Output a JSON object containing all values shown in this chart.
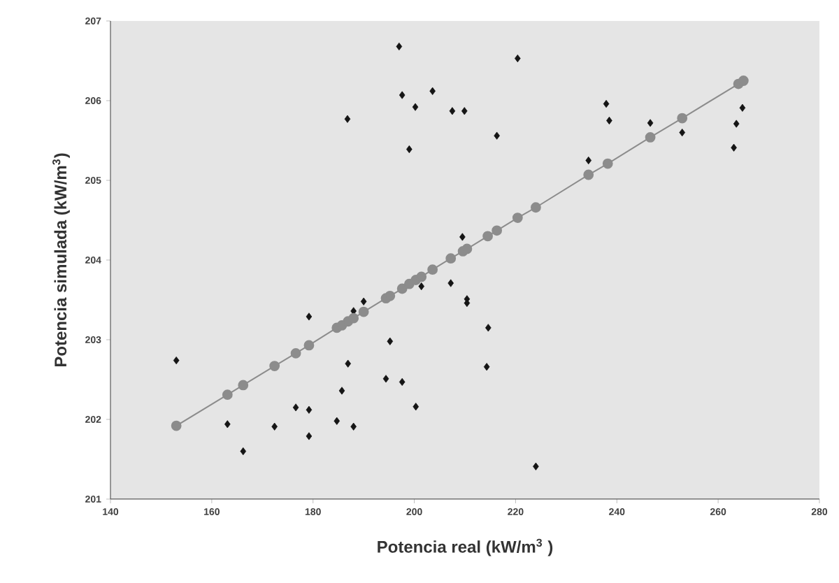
{
  "chart_data": {
    "type": "scatter",
    "xlabel": "Potencia real (kW/m$^{3}$ )",
    "ylabel": "Potencia simulada (kW/m$^{3}$)",
    "xlim": [
      140,
      280
    ],
    "xticks": [
      140,
      160,
      180,
      200,
      220,
      240,
      260,
      280
    ],
    "ylim": [
      201,
      207
    ],
    "yticks": [
      201,
      202,
      203,
      204,
      205,
      206,
      207
    ],
    "grid": false,
    "series": [
      {
        "marker": "diamond",
        "color": "#151515",
        "x": [
          197.0,
          197.6,
          200.2,
          203.6,
          207.5,
          186.8,
          199.0,
          209.5,
          209.9,
          220.4,
          216.3,
          237.9,
          238.5,
          246.6,
          252.9,
          264.8,
          263.6,
          263.1,
          234.4,
          153.0,
          179.2,
          190.0,
          188.0,
          201.4,
          207.2,
          195.2,
          186.9,
          194.4,
          197.6,
          185.7,
          176.6,
          179.2,
          200.3,
          163.1,
          172.4,
          184.7,
          188.0,
          179.2,
          166.2,
          210.4,
          210.4,
          214.6,
          214.3,
          224.0
        ],
        "values": [
          206.68,
          206.07,
          205.92,
          206.12,
          205.87,
          205.77,
          205.39,
          204.29,
          205.87,
          206.53,
          205.56,
          205.96,
          205.75,
          205.72,
          205.6,
          205.91,
          205.71,
          205.41,
          205.25,
          202.74,
          203.29,
          203.48,
          203.36,
          203.67,
          203.71,
          202.98,
          202.7,
          202.51,
          202.47,
          202.36,
          202.15,
          202.12,
          202.16,
          201.94,
          201.91,
          201.98,
          201.91,
          201.79,
          201.6,
          203.51,
          203.46,
          203.15,
          202.66,
          201.41
        ]
      },
      {
        "type": "line",
        "marker": "circle",
        "color": "#8c8c8c",
        "x": [
          153.0,
          163.1,
          166.2,
          172.4,
          176.6,
          179.2,
          184.7,
          185.7,
          186.9,
          188.0,
          190.0,
          194.4,
          195.2,
          197.6,
          199.0,
          200.3,
          201.4,
          203.6,
          207.2,
          209.6,
          210.4,
          214.5,
          216.3,
          220.4,
          224.0,
          234.4,
          238.2,
          246.6,
          252.9,
          264.0,
          265.0
        ],
        "values": [
          201.92,
          202.31,
          202.43,
          202.67,
          202.83,
          202.93,
          203.15,
          203.18,
          203.23,
          203.27,
          203.35,
          203.52,
          203.55,
          203.64,
          203.7,
          203.75,
          203.79,
          203.88,
          204.02,
          204.11,
          204.14,
          204.3,
          204.37,
          204.53,
          204.66,
          205.07,
          205.21,
          205.54,
          205.78,
          206.21,
          206.25
        ]
      }
    ]
  }
}
